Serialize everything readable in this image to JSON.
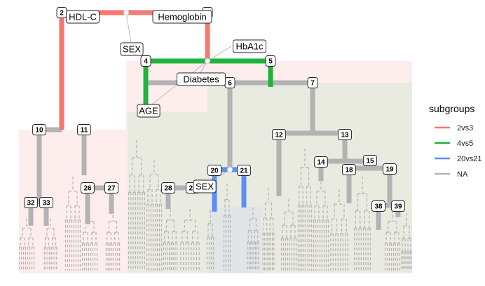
{
  "colors": {
    "2vs3": "#F8766D",
    "4vs5": "#1EB43C",
    "20vs21": "#5B8FF2",
    "NA": "#B3B3B3",
    "region_pink": "#FDEDED",
    "region_green": "#E9EAE0",
    "region_grey": "#E2E4E6"
  },
  "nodes": [
    {
      "id": "2",
      "label": "2"
    },
    {
      "id": "3",
      "label": "3"
    },
    {
      "id": "4",
      "label": "4"
    },
    {
      "id": "5",
      "label": "5"
    },
    {
      "id": "6",
      "label": "6"
    },
    {
      "id": "7",
      "label": "7"
    },
    {
      "id": "10",
      "label": "10"
    },
    {
      "id": "11",
      "label": "11"
    },
    {
      "id": "12",
      "label": "12"
    },
    {
      "id": "13",
      "label": "13"
    },
    {
      "id": "14",
      "label": "14"
    },
    {
      "id": "15",
      "label": "15"
    },
    {
      "id": "18",
      "label": "18"
    },
    {
      "id": "19",
      "label": "19"
    },
    {
      "id": "20",
      "label": "20"
    },
    {
      "id": "21",
      "label": "21"
    },
    {
      "id": "26",
      "label": "26"
    },
    {
      "id": "27",
      "label": "27"
    },
    {
      "id": "28",
      "label": "28"
    },
    {
      "id": "29",
      "label": "29"
    },
    {
      "id": "32",
      "label": "32"
    },
    {
      "id": "33",
      "label": "33"
    },
    {
      "id": "38",
      "label": "38"
    },
    {
      "id": "39",
      "label": "39"
    }
  ],
  "variables": [
    {
      "id": "hdlc",
      "label": "HDL-C"
    },
    {
      "id": "hemoglobin",
      "label": "Hemoglobin"
    },
    {
      "id": "sex1",
      "label": "SEX"
    },
    {
      "id": "hba1c",
      "label": "HbA1c"
    },
    {
      "id": "diabetes",
      "label": "Diabetes"
    },
    {
      "id": "age",
      "label": "AGE"
    },
    {
      "id": "sex2",
      "label": "SEX"
    }
  ],
  "legend": {
    "title": "subgroups",
    "items": [
      {
        "key": "2vs3",
        "label": "2vs3"
      },
      {
        "key": "4vs5",
        "label": "4vs5"
      },
      {
        "key": "20vs21",
        "label": "20vs21"
      },
      {
        "key": "NA",
        "label": "NA"
      }
    ]
  }
}
